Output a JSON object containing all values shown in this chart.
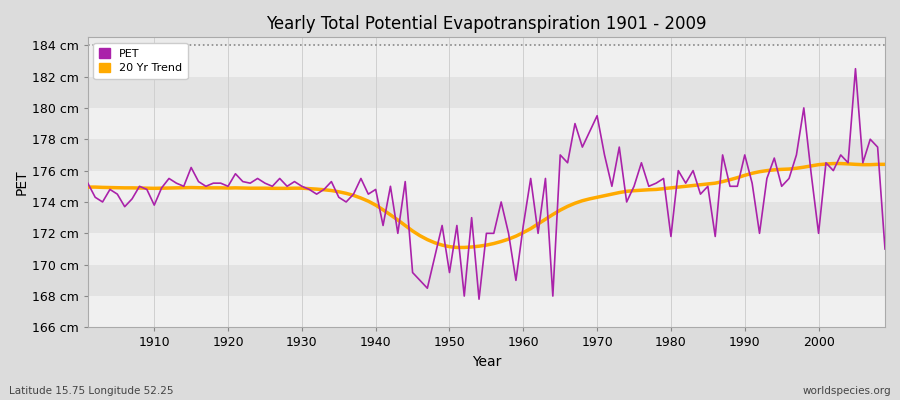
{
  "title": "Yearly Total Potential Evapotranspiration 1901 - 2009",
  "xlabel": "Year",
  "ylabel": "PET",
  "bottom_left": "Latitude 15.75 Longitude 52.25",
  "bottom_right": "worldspecies.org",
  "ylim": [
    166,
    184.5
  ],
  "yticks": [
    166,
    168,
    170,
    172,
    174,
    176,
    178,
    180,
    182,
    184
  ],
  "ytick_labels": [
    "166 cm",
    "168 cm",
    "170 cm",
    "172 cm",
    "174 cm",
    "176 cm",
    "178 cm",
    "180 cm",
    "182 cm",
    "184 cm"
  ],
  "xlim": [
    1901,
    2009
  ],
  "xticks": [
    1910,
    1920,
    1930,
    1940,
    1950,
    1960,
    1970,
    1980,
    1990,
    2000
  ],
  "pet_color": "#aa22aa",
  "trend_color": "#ffaa00",
  "bg_color": "#dcdcdc",
  "plot_bg_color": "#ebebeb",
  "band_color_light": "#f0f0f0",
  "band_color_dark": "#e3e3e3",
  "grid_color": "#d0d0d0",
  "dotted_line_y": 184,
  "legend_labels": [
    "PET",
    "20 Yr Trend"
  ],
  "years": [
    1901,
    1902,
    1903,
    1904,
    1905,
    1906,
    1907,
    1908,
    1909,
    1910,
    1911,
    1912,
    1913,
    1914,
    1915,
    1916,
    1917,
    1918,
    1919,
    1920,
    1921,
    1922,
    1923,
    1924,
    1925,
    1926,
    1927,
    1928,
    1929,
    1930,
    1931,
    1932,
    1933,
    1934,
    1935,
    1936,
    1937,
    1938,
    1939,
    1940,
    1941,
    1942,
    1943,
    1944,
    1945,
    1946,
    1947,
    1948,
    1949,
    1950,
    1951,
    1952,
    1953,
    1954,
    1955,
    1956,
    1957,
    1958,
    1959,
    1960,
    1961,
    1962,
    1963,
    1964,
    1965,
    1966,
    1967,
    1968,
    1969,
    1970,
    1971,
    1972,
    1973,
    1974,
    1975,
    1976,
    1977,
    1978,
    1979,
    1980,
    1981,
    1982,
    1983,
    1984,
    1985,
    1986,
    1987,
    1988,
    1989,
    1990,
    1991,
    1992,
    1993,
    1994,
    1995,
    1996,
    1997,
    1998,
    1999,
    2000,
    2001,
    2002,
    2003,
    2004,
    2005,
    2006,
    2007,
    2008,
    2009
  ],
  "pet_values": [
    175.2,
    174.3,
    174.0,
    174.8,
    174.5,
    173.7,
    174.2,
    175.0,
    174.8,
    173.8,
    174.9,
    175.5,
    175.2,
    175.0,
    176.2,
    175.3,
    175.0,
    175.2,
    175.2,
    175.0,
    175.8,
    175.3,
    175.2,
    175.5,
    175.2,
    175.0,
    175.5,
    175.0,
    175.3,
    175.0,
    174.8,
    174.5,
    174.8,
    175.3,
    174.3,
    174.0,
    174.5,
    175.5,
    174.5,
    174.8,
    172.5,
    175.0,
    172.0,
    175.3,
    169.5,
    169.0,
    168.5,
    170.5,
    172.5,
    169.5,
    172.5,
    168.0,
    173.0,
    167.8,
    172.0,
    172.0,
    174.0,
    172.0,
    169.0,
    172.5,
    175.5,
    172.0,
    175.5,
    168.0,
    177.0,
    176.5,
    179.0,
    177.5,
    178.5,
    179.5,
    177.0,
    175.0,
    177.5,
    174.0,
    175.0,
    176.5,
    175.0,
    175.2,
    175.5,
    171.8,
    176.0,
    175.2,
    176.0,
    174.5,
    175.0,
    171.8,
    177.0,
    175.0,
    175.0,
    177.0,
    175.2,
    172.0,
    175.5,
    176.8,
    175.0,
    175.5,
    177.0,
    180.0,
    175.8,
    172.0,
    176.5,
    176.0,
    177.0,
    176.5,
    182.5,
    176.5,
    178.0,
    177.5,
    171.0
  ],
  "trend_values": [
    174.95,
    174.95,
    174.93,
    174.92,
    174.91,
    174.9,
    174.9,
    174.89,
    174.88,
    174.87,
    174.88,
    174.89,
    174.9,
    174.91,
    174.92,
    174.91,
    174.9,
    174.9,
    174.9,
    174.89,
    174.9,
    174.89,
    174.88,
    174.88,
    174.88,
    174.87,
    174.87,
    174.87,
    174.88,
    174.88,
    174.85,
    174.82,
    174.78,
    174.73,
    174.65,
    174.55,
    174.42,
    174.25,
    174.05,
    173.8,
    173.5,
    173.18,
    172.85,
    172.5,
    172.15,
    171.85,
    171.6,
    171.4,
    171.25,
    171.15,
    171.1,
    171.1,
    171.13,
    171.18,
    171.25,
    171.35,
    171.48,
    171.63,
    171.82,
    172.05,
    172.3,
    172.6,
    172.9,
    173.2,
    173.48,
    173.72,
    173.92,
    174.08,
    174.2,
    174.3,
    174.4,
    174.5,
    174.6,
    174.68,
    174.72,
    174.75,
    174.78,
    174.8,
    174.85,
    174.9,
    174.95,
    175.0,
    175.05,
    175.1,
    175.15,
    175.2,
    175.3,
    175.42,
    175.55,
    175.7,
    175.83,
    175.93,
    176.0,
    176.05,
    176.08,
    176.1,
    176.15,
    176.22,
    176.3,
    176.38,
    176.42,
    176.45,
    176.45,
    176.43,
    176.4,
    176.38,
    176.38,
    176.4,
    176.4
  ]
}
